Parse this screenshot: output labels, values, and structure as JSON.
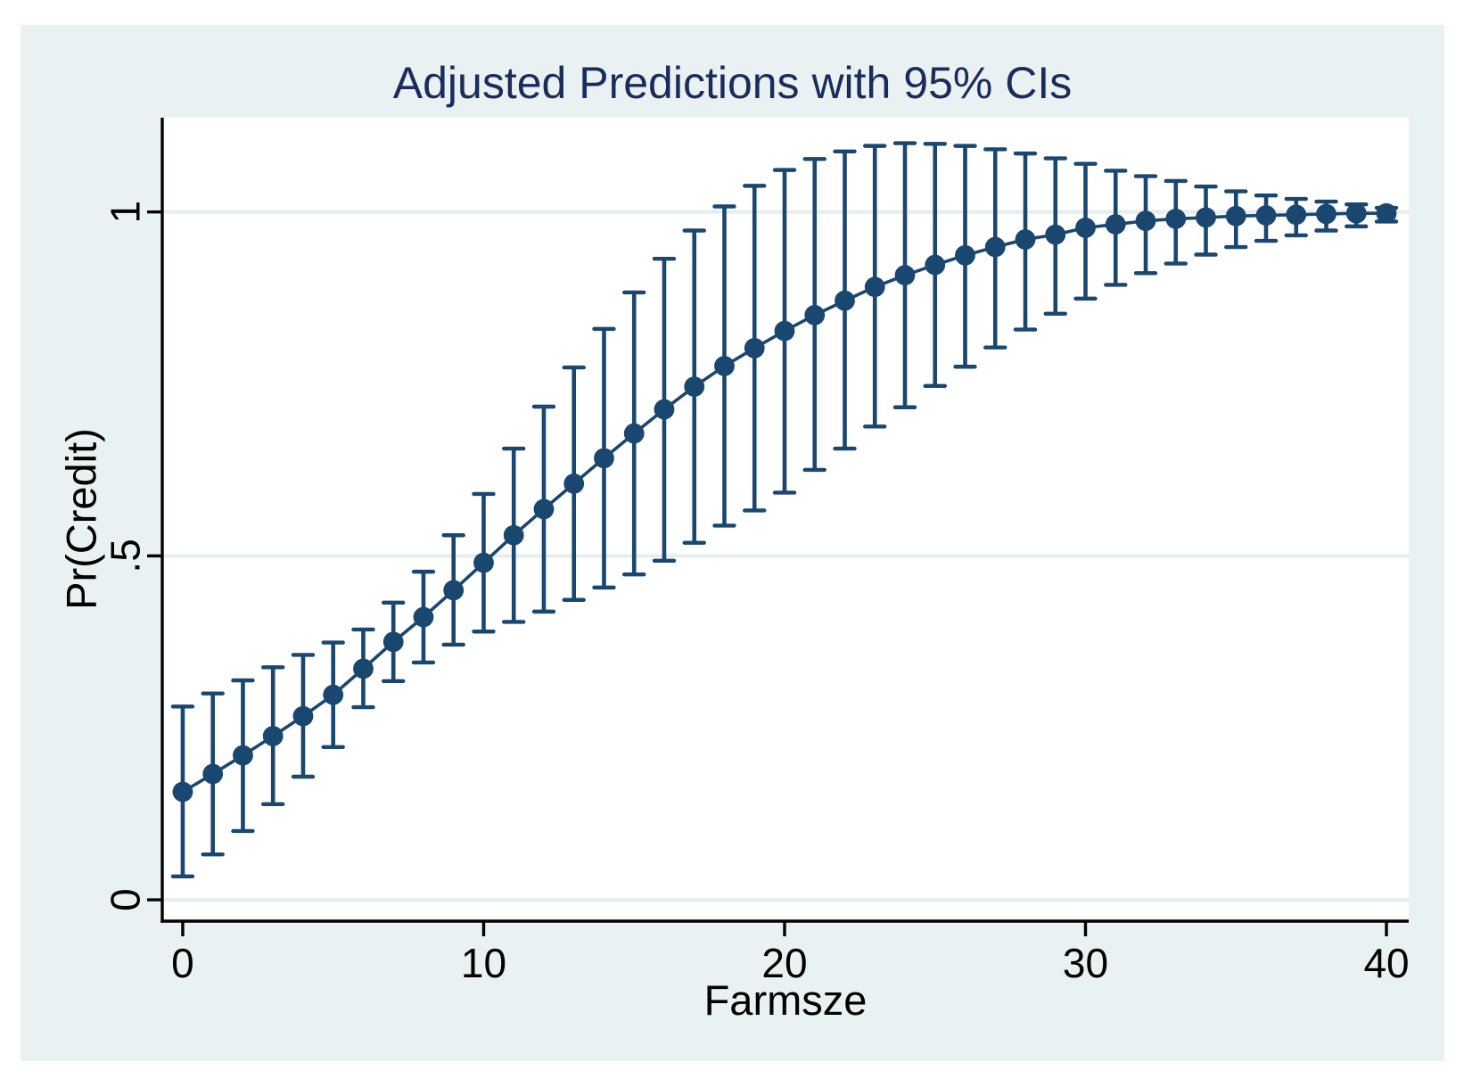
{
  "figure": {
    "background_color": "#eaf1f3",
    "plot_background_color": "#ffffff",
    "axis_color": "#000000"
  },
  "chart_data": {
    "type": "line",
    "title": "Adjusted Predictions with 95% CIs",
    "xlabel": "Farmsze",
    "ylabel": "Pr(Credit)",
    "ci_level": "95%",
    "legend_position": "none",
    "grid": true,
    "grid_color": "#e4eef1",
    "series_color": "#1a476f",
    "title_color": "#1a2d5a",
    "xlim": [
      -0.68,
      40.74
    ],
    "ylim": [
      -0.031,
      1.137
    ],
    "x_ticks": [
      {
        "value": 0,
        "label": "0"
      },
      {
        "value": 10,
        "label": "10"
      },
      {
        "value": 20,
        "label": "20"
      },
      {
        "value": 30,
        "label": "30"
      },
      {
        "value": 40,
        "label": "40"
      }
    ],
    "y_ticks": [
      {
        "value": 0,
        "label": "0"
      },
      {
        "value": 0.5,
        "label": ".5"
      },
      {
        "value": 1,
        "label": "1"
      }
    ],
    "x": [
      0,
      1,
      2,
      3,
      4,
      5,
      6,
      7,
      8,
      9,
      10,
      11,
      12,
      13,
      14,
      15,
      16,
      17,
      18,
      19,
      20,
      21,
      22,
      23,
      24,
      25,
      26,
      27,
      28,
      29,
      30,
      31,
      32,
      33,
      34,
      35,
      36,
      37,
      38,
      39,
      40
    ],
    "prediction": [
      0.157,
      0.183,
      0.21,
      0.238,
      0.267,
      0.298,
      0.336,
      0.375,
      0.411,
      0.45,
      0.49,
      0.53,
      0.568,
      0.605,
      0.642,
      0.678,
      0.713,
      0.746,
      0.776,
      0.802,
      0.827,
      0.85,
      0.871,
      0.891,
      0.908,
      0.923,
      0.937,
      0.949,
      0.96,
      0.967,
      0.977,
      0.982,
      0.987,
      0.99,
      0.992,
      0.994,
      0.995,
      0.996,
      0.997,
      0.998,
      0.998
    ],
    "ci_low": [
      0.034,
      0.066,
      0.1,
      0.139,
      0.179,
      0.222,
      0.28,
      0.318,
      0.345,
      0.371,
      0.39,
      0.404,
      0.419,
      0.436,
      0.454,
      0.473,
      0.493,
      0.519,
      0.544,
      0.566,
      0.592,
      0.625,
      0.656,
      0.688,
      0.716,
      0.747,
      0.775,
      0.803,
      0.829,
      0.852,
      0.874,
      0.894,
      0.911,
      0.925,
      0.938,
      0.949,
      0.958,
      0.966,
      0.973,
      0.979,
      0.986
    ],
    "ci_high": [
      0.281,
      0.3,
      0.319,
      0.338,
      0.356,
      0.374,
      0.393,
      0.432,
      0.477,
      0.53,
      0.59,
      0.656,
      0.717,
      0.774,
      0.83,
      0.883,
      0.932,
      0.973,
      1.008,
      1.038,
      1.061,
      1.077,
      1.088,
      1.096,
      1.1,
      1.099,
      1.096,
      1.091,
      1.085,
      1.078,
      1.07,
      1.06,
      1.052,
      1.045,
      1.037,
      1.03,
      1.024,
      1.019,
      1.015,
      1.011,
      1.006
    ]
  }
}
